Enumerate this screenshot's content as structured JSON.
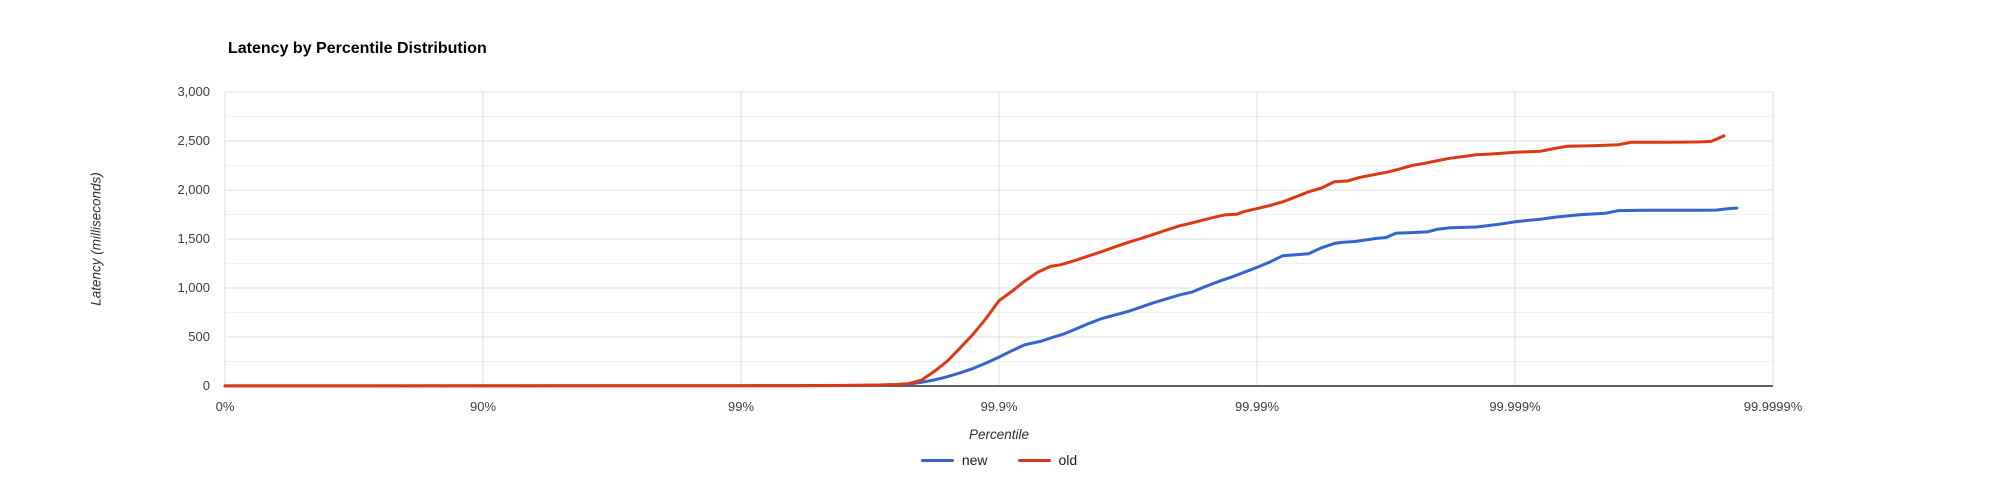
{
  "chart_data": {
    "type": "line",
    "title": "Latency by Percentile Distribution",
    "xlabel": "Percentile",
    "ylabel": "Latency (milliseconds)",
    "x_scale": "percentile-log (equal pixel width per decade of 1-p, unit = number of nines)",
    "xlim_nines": [
      0,
      6
    ],
    "ylim": [
      0,
      3000
    ],
    "y_major_step": 500,
    "y_minor_step": 250,
    "grid": true,
    "legend_position": "bottom-center",
    "x_ticks": [
      {
        "nines": 0,
        "label": "0%"
      },
      {
        "nines": 1,
        "label": "90%"
      },
      {
        "nines": 2,
        "label": "99%"
      },
      {
        "nines": 3,
        "label": "99.9%"
      },
      {
        "nines": 4,
        "label": "99.99%"
      },
      {
        "nines": 5,
        "label": "99.999%"
      },
      {
        "nines": 6,
        "label": "99.9999%"
      }
    ],
    "y_ticks": [
      {
        "value": 0,
        "label": "0"
      },
      {
        "value": 500,
        "label": "500"
      },
      {
        "value": 1000,
        "label": "1,000"
      },
      {
        "value": 1500,
        "label": "1,500"
      },
      {
        "value": 2000,
        "label": "2,000"
      },
      {
        "value": 2500,
        "label": "2,500"
      },
      {
        "value": 3000,
        "label": "3,000"
      }
    ],
    "series": [
      {
        "name": "new",
        "color": "#3366cc",
        "points_nines_ms": [
          [
            0,
            1
          ],
          [
            0.5,
            1
          ],
          [
            1,
            1
          ],
          [
            1.5,
            2
          ],
          [
            2,
            2
          ],
          [
            2.2,
            3
          ],
          [
            2.4,
            5
          ],
          [
            2.5,
            7
          ],
          [
            2.6,
            12
          ],
          [
            2.65,
            20
          ],
          [
            2.7,
            38
          ],
          [
            2.75,
            62
          ],
          [
            2.8,
            95
          ],
          [
            2.85,
            135
          ],
          [
            2.9,
            180
          ],
          [
            2.95,
            235
          ],
          [
            3.0,
            295
          ],
          [
            3.05,
            360
          ],
          [
            3.1,
            420
          ],
          [
            3.16,
            455
          ],
          [
            3.2,
            490
          ],
          [
            3.25,
            530
          ],
          [
            3.3,
            585
          ],
          [
            3.35,
            640
          ],
          [
            3.4,
            690
          ],
          [
            3.45,
            725
          ],
          [
            3.5,
            760
          ],
          [
            3.55,
            805
          ],
          [
            3.6,
            850
          ],
          [
            3.65,
            890
          ],
          [
            3.7,
            930
          ],
          [
            3.75,
            960
          ],
          [
            3.8,
            1015
          ],
          [
            3.85,
            1065
          ],
          [
            3.9,
            1110
          ],
          [
            3.95,
            1160
          ],
          [
            4.0,
            1210
          ],
          [
            4.05,
            1265
          ],
          [
            4.1,
            1330
          ],
          [
            4.15,
            1340
          ],
          [
            4.2,
            1350
          ],
          [
            4.25,
            1410
          ],
          [
            4.3,
            1455
          ],
          [
            4.33,
            1465
          ],
          [
            4.38,
            1475
          ],
          [
            4.42,
            1490
          ],
          [
            4.46,
            1505
          ],
          [
            4.5,
            1515
          ],
          [
            4.54,
            1560
          ],
          [
            4.6,
            1565
          ],
          [
            4.66,
            1572
          ],
          [
            4.7,
            1600
          ],
          [
            4.75,
            1615
          ],
          [
            4.8,
            1618
          ],
          [
            4.85,
            1622
          ],
          [
            4.9,
            1638
          ],
          [
            4.95,
            1655
          ],
          [
            5.0,
            1675
          ],
          [
            5.05,
            1690
          ],
          [
            5.1,
            1702
          ],
          [
            5.15,
            1720
          ],
          [
            5.2,
            1735
          ],
          [
            5.25,
            1748
          ],
          [
            5.3,
            1755
          ],
          [
            5.35,
            1762
          ],
          [
            5.4,
            1790
          ],
          [
            5.5,
            1793
          ],
          [
            5.6,
            1793
          ],
          [
            5.7,
            1793
          ],
          [
            5.78,
            1795
          ],
          [
            5.81,
            1805
          ],
          [
            5.84,
            1812
          ],
          [
            5.86,
            1815
          ]
        ]
      },
      {
        "name": "old",
        "color": "#dc3912",
        "points_nines_ms": [
          [
            0,
            1
          ],
          [
            0.5,
            1
          ],
          [
            1,
            2
          ],
          [
            1.5,
            2
          ],
          [
            2,
            3
          ],
          [
            2.2,
            4
          ],
          [
            2.4,
            6
          ],
          [
            2.5,
            9
          ],
          [
            2.55,
            11
          ],
          [
            2.6,
            15
          ],
          [
            2.65,
            25
          ],
          [
            2.7,
            60
          ],
          [
            2.75,
            150
          ],
          [
            2.8,
            255
          ],
          [
            2.85,
            390
          ],
          [
            2.9,
            530
          ],
          [
            2.95,
            690
          ],
          [
            3.0,
            870
          ],
          [
            3.05,
            965
          ],
          [
            3.1,
            1070
          ],
          [
            3.15,
            1160
          ],
          [
            3.2,
            1220
          ],
          [
            3.24,
            1238
          ],
          [
            3.3,
            1285
          ],
          [
            3.35,
            1330
          ],
          [
            3.4,
            1372
          ],
          [
            3.45,
            1420
          ],
          [
            3.5,
            1465
          ],
          [
            3.55,
            1505
          ],
          [
            3.6,
            1548
          ],
          [
            3.65,
            1592
          ],
          [
            3.7,
            1635
          ],
          [
            3.75,
            1665
          ],
          [
            3.8,
            1700
          ],
          [
            3.85,
            1732
          ],
          [
            3.88,
            1748
          ],
          [
            3.92,
            1752
          ],
          [
            3.95,
            1780
          ],
          [
            4.0,
            1810
          ],
          [
            4.05,
            1842
          ],
          [
            4.1,
            1880
          ],
          [
            4.15,
            1930
          ],
          [
            4.2,
            1982
          ],
          [
            4.25,
            2020
          ],
          [
            4.3,
            2085
          ],
          [
            4.35,
            2092
          ],
          [
            4.4,
            2130
          ],
          [
            4.45,
            2155
          ],
          [
            4.5,
            2180
          ],
          [
            4.55,
            2212
          ],
          [
            4.6,
            2250
          ],
          [
            4.65,
            2272
          ],
          [
            4.7,
            2300
          ],
          [
            4.75,
            2325
          ],
          [
            4.8,
            2342
          ],
          [
            4.85,
            2360
          ],
          [
            4.9,
            2366
          ],
          [
            4.95,
            2376
          ],
          [
            5.0,
            2386
          ],
          [
            5.05,
            2390
          ],
          [
            5.1,
            2396
          ],
          [
            5.15,
            2422
          ],
          [
            5.2,
            2446
          ],
          [
            5.3,
            2452
          ],
          [
            5.4,
            2462
          ],
          [
            5.45,
            2487
          ],
          [
            5.55,
            2488
          ],
          [
            5.65,
            2489
          ],
          [
            5.72,
            2491
          ],
          [
            5.76,
            2496
          ],
          [
            5.79,
            2530
          ],
          [
            5.81,
            2553
          ]
        ]
      }
    ],
    "legend": [
      {
        "name": "new",
        "color": "#3366cc"
      },
      {
        "name": "old",
        "color": "#dc3912"
      }
    ]
  },
  "colors": {
    "background": "#ffffff",
    "series_new": "#3366cc",
    "series_old": "#dc3912",
    "major_gridline": "#dcdcdc",
    "minor_gridline": "#f0f0f0",
    "baseline": "#5f5f5f",
    "tick_text": "#3e3e3e",
    "axis_title_text": "#2e2e2e",
    "title_text": "#000000"
  }
}
